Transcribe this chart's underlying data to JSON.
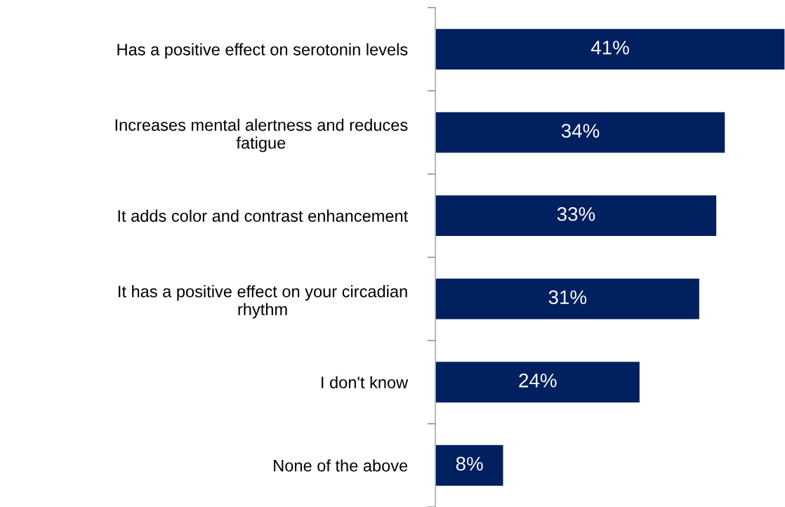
{
  "chart_data": {
    "type": "bar",
    "orientation": "horizontal",
    "categories": [
      "Has a positive effect on serotonin levels",
      "Increases mental alertness and reduces\nfatigue",
      "It adds color and contrast enhancement",
      "It has a positive effect on your circadian\nrhythm",
      "I don't know",
      "None of the above"
    ],
    "values": [
      41,
      34,
      33,
      31,
      24,
      8
    ],
    "value_labels": [
      "41%",
      "34%",
      "33%",
      "31%",
      "24%",
      "8%"
    ],
    "color": "#002060",
    "grid": false,
    "legend": false
  }
}
